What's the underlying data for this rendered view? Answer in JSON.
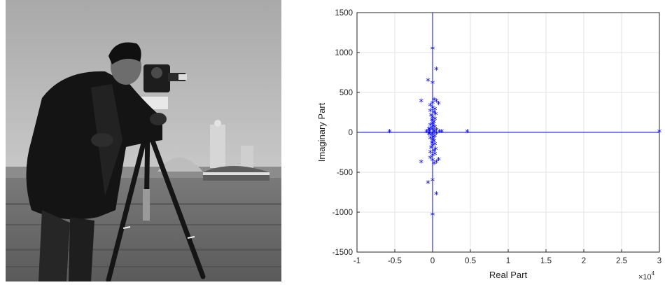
{
  "image_panel": {
    "kind": "grayscale photograph"
  },
  "chart_data": {
    "type": "scatter",
    "marker": "*",
    "marker_color": "#0000ff",
    "reference_line_color": "#0000ff",
    "grid": true,
    "xlabel": "Real Part",
    "ylabel": "Imaginary Part",
    "x_exponent_label": "×10",
    "x_exponent_power": "4",
    "x_multiplier": 10000,
    "xlim": [
      -1,
      3
    ],
    "ylim": [
      -1500,
      1500
    ],
    "xticks": [
      "-1",
      "-0.5",
      "0",
      "0.5",
      "1",
      "1.5",
      "2",
      "2.5",
      "3"
    ],
    "yticks": [
      "-1500",
      "-1000",
      "-500",
      "0",
      "500",
      "1000",
      "1500"
    ],
    "points": [
      [
        3.0,
        0
      ],
      [
        -0.57,
        0
      ],
      [
        0.46,
        0
      ],
      [
        0.12,
        0
      ],
      [
        -0.08,
        0
      ],
      [
        0.09,
        0
      ],
      [
        0.0,
        1040
      ],
      [
        0.0,
        -1040
      ],
      [
        0.05,
        780
      ],
      [
        0.05,
        -780
      ],
      [
        -0.06,
        640
      ],
      [
        -0.06,
        -640
      ],
      [
        0.0,
        610
      ],
      [
        0.0,
        -610
      ],
      [
        -0.15,
        380
      ],
      [
        -0.15,
        -380
      ],
      [
        0.02,
        400
      ],
      [
        0.05,
        380
      ],
      [
        0.08,
        350
      ],
      [
        0.0,
        360
      ],
      [
        -0.03,
        330
      ],
      [
        0.02,
        -400
      ],
      [
        0.05,
        -380
      ],
      [
        0.08,
        -350
      ],
      [
        0.0,
        -360
      ],
      [
        -0.03,
        -330
      ],
      [
        0.0,
        300
      ],
      [
        0.03,
        280
      ],
      [
        -0.03,
        260
      ],
      [
        0.02,
        240
      ],
      [
        0.04,
        220
      ],
      [
        -0.02,
        200
      ],
      [
        0.0,
        180
      ],
      [
        0.03,
        160
      ],
      [
        -0.01,
        140
      ],
      [
        0.02,
        120
      ],
      [
        0.0,
        100
      ],
      [
        -0.03,
        85
      ],
      [
        0.01,
        70
      ],
      [
        0.03,
        55
      ],
      [
        -0.02,
        40
      ],
      [
        0.0,
        25
      ],
      [
        0.02,
        10
      ],
      [
        0.0,
        -300
      ],
      [
        0.03,
        -280
      ],
      [
        -0.03,
        -260
      ],
      [
        0.02,
        -240
      ],
      [
        0.04,
        -220
      ],
      [
        -0.02,
        -200
      ],
      [
        0.0,
        -180
      ],
      [
        0.03,
        -160
      ],
      [
        -0.01,
        -140
      ],
      [
        0.02,
        -120
      ],
      [
        0.0,
        -100
      ],
      [
        -0.03,
        -85
      ],
      [
        0.01,
        -70
      ],
      [
        0.03,
        -55
      ],
      [
        -0.02,
        -40
      ],
      [
        0.0,
        -25
      ],
      [
        0.02,
        -10
      ],
      [
        -0.05,
        30
      ],
      [
        -0.05,
        -30
      ],
      [
        -0.04,
        15
      ],
      [
        -0.04,
        -15
      ],
      [
        0.05,
        20
      ],
      [
        0.05,
        -20
      ]
    ]
  }
}
